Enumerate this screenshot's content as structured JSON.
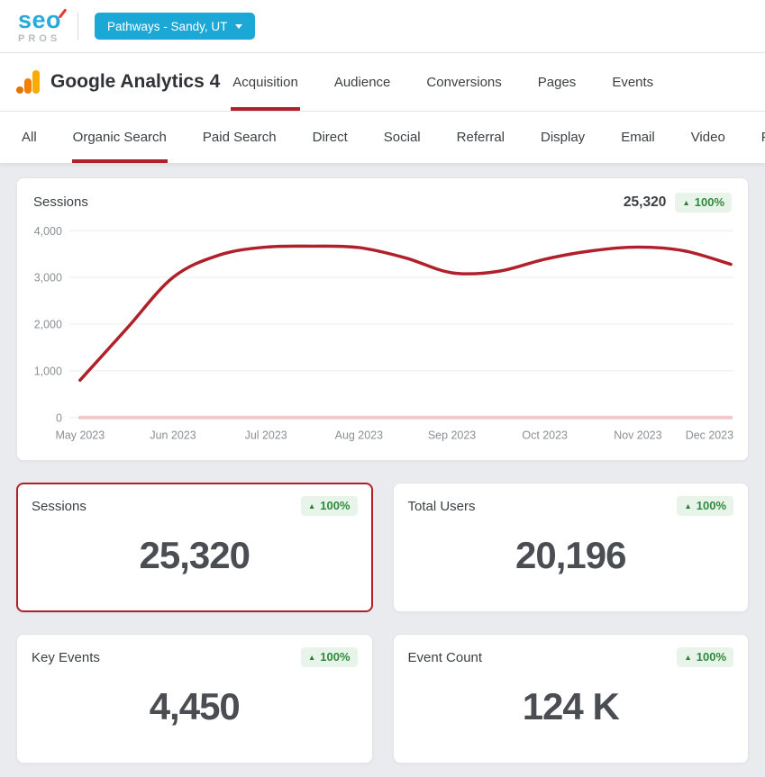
{
  "header": {
    "brand_top": "seo",
    "brand_bottom": "PROS",
    "account_button": {
      "label": "Pathways - Sandy, UT"
    }
  },
  "nav": {
    "title": "Google Analytics 4",
    "tabs": [
      {
        "label": "Acquisition",
        "active": true
      },
      {
        "label": "Audience",
        "active": false
      },
      {
        "label": "Conversions",
        "active": false
      },
      {
        "label": "Pages",
        "active": false
      },
      {
        "label": "Events",
        "active": false
      }
    ]
  },
  "subnav": {
    "items": [
      {
        "label": "All",
        "active": false
      },
      {
        "label": "Organic Search",
        "active": true
      },
      {
        "label": "Paid Search",
        "active": false
      },
      {
        "label": "Direct",
        "active": false
      },
      {
        "label": "Social",
        "active": false
      },
      {
        "label": "Referral",
        "active": false
      },
      {
        "label": "Display",
        "active": false
      },
      {
        "label": "Email",
        "active": false
      },
      {
        "label": "Video",
        "active": false
      },
      {
        "label": "Paid Social",
        "active": false
      }
    ]
  },
  "chart_card": {
    "title": "Sessions",
    "total": "25,320",
    "change": "100%"
  },
  "chart_data": {
    "type": "line",
    "title": "Sessions",
    "x_labels": [
      "May 2023",
      "Jun 2023",
      "Jul 2023",
      "Aug 2023",
      "Sep 2023",
      "Oct 2023",
      "Nov 2023",
      "Dec 2023"
    ],
    "points_per_month": 2,
    "y_ticks": [
      0,
      1000,
      2000,
      3000,
      4000
    ],
    "ylim": [
      0,
      4000
    ],
    "grid": true,
    "legend": "none",
    "series": [
      {
        "name": "Previous period",
        "color": "#f4c8cb",
        "width": 4,
        "values": [
          0,
          0,
          0,
          0,
          0,
          0,
          0,
          0,
          0,
          0,
          0,
          0,
          0,
          0,
          0
        ]
      },
      {
        "name": "Sessions",
        "color": "#b0202a",
        "width": 3.5,
        "values": [
          800,
          1900,
          3000,
          3480,
          3650,
          3670,
          3640,
          3420,
          3100,
          3130,
          3390,
          3570,
          3650,
          3570,
          3280
        ]
      }
    ]
  },
  "metrics": [
    {
      "label": "Sessions",
      "value": "25,320",
      "change": "100%",
      "selected": true
    },
    {
      "label": "Total Users",
      "value": "20,196",
      "change": "100%",
      "selected": false
    },
    {
      "label": "Key Events",
      "value": "4,450",
      "change": "100%",
      "selected": false
    },
    {
      "label": "Event Count",
      "value": "124 K",
      "change": "100%",
      "selected": false
    }
  ],
  "colors": {
    "accent_red": "#b0202a",
    "accent_blue": "#1ba8d6",
    "badge_green_text": "#2e8b3d",
    "badge_green_bg": "#e8f4e9",
    "prev_period_pink": "#f4c8cb",
    "page_bg": "#e9ebee"
  }
}
